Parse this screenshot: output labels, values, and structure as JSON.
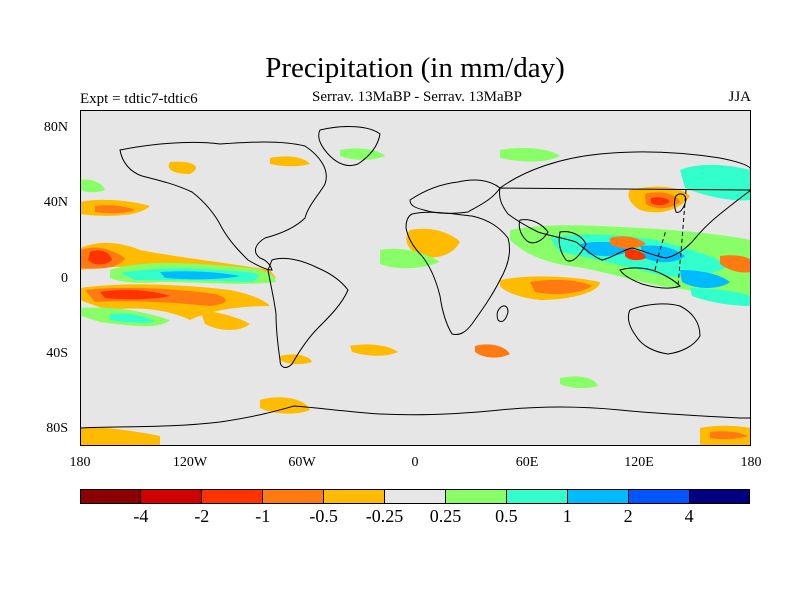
{
  "title": "Precipitation (in mm/day)",
  "experiment": "Expt = tdtic7-tdtic6",
  "comparison": "Serrav.   13MaBP - Serrav.   13MaBP",
  "season": "JJA",
  "lat_labels": [
    "80N",
    "40N",
    "0",
    "40S",
    "80S"
  ],
  "lon_labels": [
    "180",
    "120W",
    "60W",
    "0",
    "60E",
    "120E",
    "180"
  ],
  "colorbar": {
    "colors": [
      "#8b0000",
      "#d10000",
      "#ff3300",
      "#ff7a10",
      "#ffbb00",
      "#e6e6e6",
      "#88ff66",
      "#33ffcc",
      "#00bbff",
      "#0055ff",
      "#000080"
    ],
    "labels": [
      "-4",
      "-2",
      "-1",
      "-0.5",
      "-0.25",
      "0.25",
      "0.5",
      "1",
      "2",
      "4"
    ]
  },
  "colors": {
    "land_bg": "#e6e6e6",
    "coast": "#000000",
    "frame": "#000000"
  }
}
